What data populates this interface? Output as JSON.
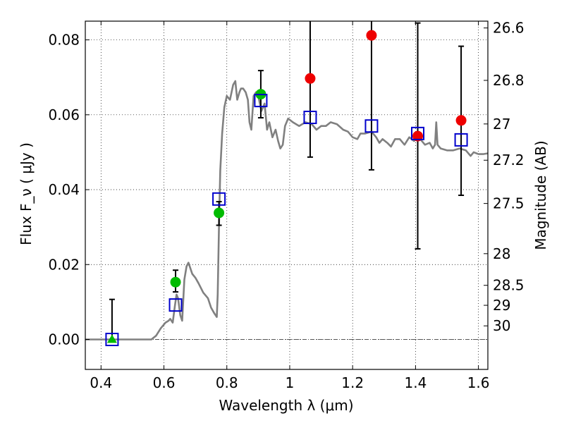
{
  "chart_data": {
    "type": "scatter",
    "xlabel": "Wavelength  λ (μm)",
    "ylabel": "Flux  F_ν  ( μJy )",
    "y2label": "Magnitude (AB)",
    "xlim": [
      0.35,
      1.63
    ],
    "ylim": [
      -0.008,
      0.085
    ],
    "grid": true,
    "grid_style": "dotted",
    "x_ticks": [
      0.4,
      0.6,
      0.8,
      1.0,
      1.2,
      1.4,
      1.6
    ],
    "x_tick_labels": [
      "0.4",
      "0.6",
      "0.8",
      "1",
      "1.2",
      "1.4",
      "1.6"
    ],
    "y_ticks": [
      0.0,
      0.02,
      0.04,
      0.06,
      0.08
    ],
    "y_tick_labels": [
      "0.00",
      "0.02",
      "0.04",
      "0.06",
      "0.08"
    ],
    "y2_ticks": [
      {
        "mag": 26.6,
        "label": "26.6"
      },
      {
        "mag": 26.8,
        "label": "26.8"
      },
      {
        "mag": 27.0,
        "label": "27"
      },
      {
        "mag": 27.2,
        "label": "27.2"
      },
      {
        "mag": 27.5,
        "label": "27.5"
      },
      {
        "mag": 28.0,
        "label": "28"
      },
      {
        "mag": 28.5,
        "label": "28.5"
      },
      {
        "mag": 29.0,
        "label": "29"
      },
      {
        "mag": 30.0,
        "label": "30"
      }
    ],
    "reference_line": {
      "y": 0.0,
      "style": "dash-dot",
      "color": "#555555"
    },
    "model_sed": {
      "color": "#808080",
      "points": [
        [
          0.35,
          0.0
        ],
        [
          0.56,
          0.0
        ],
        [
          0.575,
          0.001
        ],
        [
          0.59,
          0.003
        ],
        [
          0.605,
          0.0045
        ],
        [
          0.615,
          0.005
        ],
        [
          0.62,
          0.0055
        ],
        [
          0.628,
          0.0045
        ],
        [
          0.635,
          0.009
        ],
        [
          0.64,
          0.012
        ],
        [
          0.645,
          0.011
        ],
        [
          0.652,
          0.0065
        ],
        [
          0.658,
          0.005
        ],
        [
          0.665,
          0.016
        ],
        [
          0.672,
          0.0195
        ],
        [
          0.678,
          0.0205
        ],
        [
          0.69,
          0.0175
        ],
        [
          0.7,
          0.0165
        ],
        [
          0.71,
          0.015
        ],
        [
          0.725,
          0.0125
        ],
        [
          0.74,
          0.011
        ],
        [
          0.75,
          0.0085
        ],
        [
          0.76,
          0.007
        ],
        [
          0.768,
          0.006
        ],
        [
          0.771,
          0.012
        ],
        [
          0.775,
          0.03
        ],
        [
          0.779,
          0.045
        ],
        [
          0.785,
          0.055
        ],
        [
          0.792,
          0.062
        ],
        [
          0.8,
          0.065
        ],
        [
          0.81,
          0.064
        ],
        [
          0.82,
          0.068
        ],
        [
          0.827,
          0.069
        ],
        [
          0.833,
          0.064
        ],
        [
          0.84,
          0.066
        ],
        [
          0.845,
          0.067
        ],
        [
          0.852,
          0.067
        ],
        [
          0.86,
          0.066
        ],
        [
          0.867,
          0.064
        ],
        [
          0.872,
          0.058
        ],
        [
          0.878,
          0.056
        ],
        [
          0.885,
          0.065
        ],
        [
          0.893,
          0.066
        ],
        [
          0.9,
          0.065
        ],
        [
          0.91,
          0.061
        ],
        [
          0.92,
          0.063
        ],
        [
          0.928,
          0.056
        ],
        [
          0.935,
          0.058
        ],
        [
          0.945,
          0.054
        ],
        [
          0.955,
          0.056
        ],
        [
          0.963,
          0.053
        ],
        [
          0.97,
          0.051
        ],
        [
          0.978,
          0.052
        ],
        [
          0.985,
          0.057
        ],
        [
          0.995,
          0.059
        ],
        [
          1.01,
          0.058
        ],
        [
          1.03,
          0.057
        ],
        [
          1.05,
          0.058
        ],
        [
          1.07,
          0.0575
        ],
        [
          1.085,
          0.056
        ],
        [
          1.1,
          0.057
        ],
        [
          1.115,
          0.057
        ],
        [
          1.13,
          0.058
        ],
        [
          1.15,
          0.0575
        ],
        [
          1.17,
          0.056
        ],
        [
          1.185,
          0.0555
        ],
        [
          1.2,
          0.054
        ],
        [
          1.215,
          0.0535
        ],
        [
          1.225,
          0.055
        ],
        [
          1.24,
          0.055
        ],
        [
          1.26,
          0.0555
        ],
        [
          1.275,
          0.054
        ],
        [
          1.285,
          0.0525
        ],
        [
          1.295,
          0.0535
        ],
        [
          1.31,
          0.0525
        ],
        [
          1.322,
          0.0515
        ],
        [
          1.335,
          0.0535
        ],
        [
          1.35,
          0.0535
        ],
        [
          1.365,
          0.052
        ],
        [
          1.38,
          0.054
        ],
        [
          1.395,
          0.053
        ],
        [
          1.41,
          0.054
        ],
        [
          1.43,
          0.052
        ],
        [
          1.445,
          0.0525
        ],
        [
          1.455,
          0.051
        ],
        [
          1.462,
          0.052
        ],
        [
          1.466,
          0.058
        ],
        [
          1.47,
          0.052
        ],
        [
          1.48,
          0.051
        ],
        [
          1.5,
          0.0505
        ],
        [
          1.52,
          0.0505
        ],
        [
          1.54,
          0.051
        ],
        [
          1.56,
          0.0505
        ],
        [
          1.575,
          0.049
        ],
        [
          1.585,
          0.05
        ],
        [
          1.6,
          0.0495
        ],
        [
          1.615,
          0.0495
        ],
        [
          1.63,
          0.0497
        ]
      ]
    },
    "series": [
      {
        "marker": "circle",
        "color": "#00bb00",
        "points": [
          {
            "x": 0.637,
            "y": 0.0153,
            "yerr_lo": 0.0127,
            "yerr_hi": 0.0185
          },
          {
            "x": 0.775,
            "y": 0.0338,
            "yerr_lo": 0.0305,
            "yerr_hi": 0.0368
          },
          {
            "x": 0.908,
            "y": 0.0655,
            "yerr_lo": 0.0592,
            "yerr_hi": 0.0718
          }
        ]
      },
      {
        "marker": "triangle",
        "color": "#00bb00",
        "points": [
          {
            "x": 0.435,
            "y": 0.0,
            "yerr_lo": 0.0,
            "yerr_hi": 0.0107
          }
        ]
      },
      {
        "marker": "circle",
        "color": "#ee0000",
        "points": [
          {
            "x": 1.065,
            "y": 0.0697,
            "yerr_lo": 0.0487,
            "yerr_hi": 0.085
          },
          {
            "x": 1.26,
            "y": 0.0812,
            "yerr_lo": 0.0453,
            "yerr_hi": 0.085
          },
          {
            "x": 1.407,
            "y": 0.0543,
            "yerr_lo": 0.0242,
            "yerr_hi": 0.0845
          },
          {
            "x": 1.545,
            "y": 0.0585,
            "yerr_lo": 0.0385,
            "yerr_hi": 0.0783
          }
        ]
      },
      {
        "marker": "open-square",
        "color": "#0000cc",
        "points": [
          {
            "x": 0.435,
            "y": 0.0
          },
          {
            "x": 0.637,
            "y": 0.0092
          },
          {
            "x": 0.775,
            "y": 0.0375
          },
          {
            "x": 0.908,
            "y": 0.0638
          },
          {
            "x": 1.065,
            "y": 0.0593
          },
          {
            "x": 1.26,
            "y": 0.057
          },
          {
            "x": 1.407,
            "y": 0.055
          },
          {
            "x": 1.545,
            "y": 0.0533
          }
        ]
      }
    ]
  }
}
